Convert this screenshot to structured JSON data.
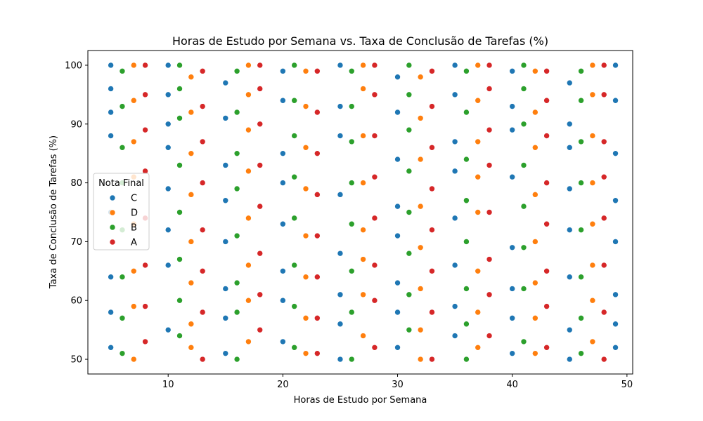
{
  "chart_data": {
    "type": "scatter",
    "title": "Horas de Estudo por Semana vs. Taxa de Conclusão de Tarefas (%)",
    "xlabel": "Horas de Estudo por Semana",
    "ylabel": "Taxa de Conclusão de Tarefas (%)",
    "xlim": [
      3.0,
      50.5
    ],
    "ylim": [
      47.5,
      102.5
    ],
    "xticks": [
      10,
      20,
      30,
      40,
      50
    ],
    "yticks": [
      50,
      60,
      70,
      80,
      90,
      100
    ],
    "grid": false,
    "legend": {
      "title": "Nota Final",
      "placement": "center-left"
    },
    "point_grid": {
      "x_values": "integers 5 to 49",
      "y_values": "integers 50 to 100"
    },
    "series": [
      {
        "name": "C",
        "color": "#1f77b4",
        "points": [
          [
            5,
            100
          ],
          [
            5,
            96
          ],
          [
            5,
            92
          ],
          [
            5,
            88
          ],
          [
            5,
            75
          ],
          [
            5,
            64
          ],
          [
            5,
            58
          ],
          [
            5,
            52
          ],
          [
            10,
            100
          ],
          [
            10,
            95
          ],
          [
            10,
            90
          ],
          [
            10,
            86
          ],
          [
            10,
            79
          ],
          [
            10,
            72
          ],
          [
            10,
            66
          ],
          [
            10,
            55
          ],
          [
            15,
            97
          ],
          [
            15,
            91
          ],
          [
            15,
            83
          ],
          [
            15,
            77
          ],
          [
            15,
            70
          ],
          [
            15,
            62
          ],
          [
            15,
            57
          ],
          [
            15,
            51
          ],
          [
            20,
            99
          ],
          [
            20,
            94
          ],
          [
            20,
            85
          ],
          [
            20,
            80
          ],
          [
            20,
            73
          ],
          [
            20,
            65
          ],
          [
            20,
            60
          ],
          [
            20,
            53
          ],
          [
            25,
            100
          ],
          [
            25,
            93
          ],
          [
            25,
            88
          ],
          [
            25,
            78
          ],
          [
            25,
            68
          ],
          [
            25,
            61
          ],
          [
            25,
            56
          ],
          [
            25,
            50
          ],
          [
            30,
            98
          ],
          [
            30,
            92
          ],
          [
            30,
            84
          ],
          [
            30,
            76
          ],
          [
            30,
            71
          ],
          [
            30,
            63
          ],
          [
            30,
            58
          ],
          [
            30,
            52
          ],
          [
            35,
            100
          ],
          [
            35,
            95
          ],
          [
            35,
            87
          ],
          [
            35,
            82
          ],
          [
            35,
            74
          ],
          [
            35,
            66
          ],
          [
            35,
            59
          ],
          [
            35,
            54
          ],
          [
            40,
            99
          ],
          [
            40,
            93
          ],
          [
            40,
            89
          ],
          [
            40,
            81
          ],
          [
            40,
            69
          ],
          [
            40,
            62
          ],
          [
            40,
            57
          ],
          [
            40,
            51
          ],
          [
            45,
            97
          ],
          [
            45,
            90
          ],
          [
            45,
            86
          ],
          [
            45,
            79
          ],
          [
            45,
            72
          ],
          [
            45,
            64
          ],
          [
            45,
            55
          ],
          [
            45,
            50
          ],
          [
            49,
            100
          ],
          [
            49,
            94
          ],
          [
            49,
            85
          ],
          [
            49,
            77
          ],
          [
            49,
            70
          ],
          [
            49,
            61
          ],
          [
            49,
            56
          ],
          [
            49,
            52
          ]
        ]
      },
      {
        "name": "D",
        "color": "#ff7f0e",
        "points": [
          [
            7,
            100
          ],
          [
            7,
            94
          ],
          [
            7,
            87
          ],
          [
            7,
            81
          ],
          [
            7,
            73
          ],
          [
            7,
            65
          ],
          [
            7,
            59
          ],
          [
            7,
            50
          ],
          [
            12,
            98
          ],
          [
            12,
            92
          ],
          [
            12,
            85
          ],
          [
            12,
            78
          ],
          [
            12,
            70
          ],
          [
            12,
            63
          ],
          [
            12,
            56
          ],
          [
            12,
            52
          ],
          [
            17,
            100
          ],
          [
            17,
            95
          ],
          [
            17,
            89
          ],
          [
            17,
            82
          ],
          [
            17,
            74
          ],
          [
            17,
            66
          ],
          [
            17,
            60
          ],
          [
            17,
            53
          ],
          [
            22,
            99
          ],
          [
            22,
            93
          ],
          [
            22,
            86
          ],
          [
            22,
            79
          ],
          [
            22,
            71
          ],
          [
            22,
            64
          ],
          [
            22,
            57
          ],
          [
            22,
            51
          ],
          [
            27,
            100
          ],
          [
            27,
            96
          ],
          [
            27,
            88
          ],
          [
            27,
            80
          ],
          [
            27,
            72
          ],
          [
            27,
            67
          ],
          [
            27,
            61
          ],
          [
            27,
            54
          ],
          [
            32,
            98
          ],
          [
            32,
            91
          ],
          [
            32,
            84
          ],
          [
            32,
            76
          ],
          [
            32,
            69
          ],
          [
            32,
            62
          ],
          [
            32,
            55
          ],
          [
            32,
            50
          ],
          [
            37,
            100
          ],
          [
            37,
            94
          ],
          [
            37,
            87
          ],
          [
            37,
            81
          ],
          [
            37,
            75
          ],
          [
            37,
            65
          ],
          [
            37,
            58
          ],
          [
            37,
            52
          ],
          [
            42,
            99
          ],
          [
            42,
            92
          ],
          [
            42,
            86
          ],
          [
            42,
            78
          ],
          [
            42,
            70
          ],
          [
            42,
            63
          ],
          [
            42,
            57
          ],
          [
            42,
            51
          ],
          [
            47,
            100
          ],
          [
            47,
            95
          ],
          [
            47,
            88
          ],
          [
            47,
            80
          ],
          [
            47,
            73
          ],
          [
            47,
            66
          ],
          [
            47,
            60
          ],
          [
            47,
            53
          ]
        ]
      },
      {
        "name": "B",
        "color": "#2ca02c",
        "points": [
          [
            6,
            99
          ],
          [
            6,
            93
          ],
          [
            6,
            86
          ],
          [
            6,
            80
          ],
          [
            6,
            72
          ],
          [
            6,
            64
          ],
          [
            6,
            57
          ],
          [
            6,
            51
          ],
          [
            11,
            100
          ],
          [
            11,
            96
          ],
          [
            11,
            91
          ],
          [
            11,
            83
          ],
          [
            11,
            75
          ],
          [
            11,
            67
          ],
          [
            11,
            60
          ],
          [
            11,
            54
          ],
          [
            16,
            99
          ],
          [
            16,
            92
          ],
          [
            16,
            85
          ],
          [
            16,
            79
          ],
          [
            16,
            71
          ],
          [
            16,
            63
          ],
          [
            16,
            58
          ],
          [
            16,
            50
          ],
          [
            21,
            100
          ],
          [
            21,
            94
          ],
          [
            21,
            88
          ],
          [
            21,
            81
          ],
          [
            21,
            74
          ],
          [
            21,
            66
          ],
          [
            21,
            59
          ],
          [
            21,
            52
          ],
          [
            26,
            99
          ],
          [
            26,
            93
          ],
          [
            26,
            87
          ],
          [
            26,
            80
          ],
          [
            26,
            73
          ],
          [
            26,
            65
          ],
          [
            26,
            58
          ],
          [
            26,
            50
          ],
          [
            31,
            100
          ],
          [
            31,
            95
          ],
          [
            31,
            89
          ],
          [
            31,
            82
          ],
          [
            31,
            75
          ],
          [
            31,
            68
          ],
          [
            31,
            61
          ],
          [
            31,
            55
          ],
          [
            36,
            99
          ],
          [
            36,
            92
          ],
          [
            36,
            84
          ],
          [
            36,
            77
          ],
          [
            36,
            70
          ],
          [
            36,
            62
          ],
          [
            36,
            56
          ],
          [
            36,
            50
          ],
          [
            41,
            100
          ],
          [
            41,
            96
          ],
          [
            41,
            90
          ],
          [
            41,
            83
          ],
          [
            41,
            76
          ],
          [
            41,
            69
          ],
          [
            41,
            62
          ],
          [
            41,
            53
          ],
          [
            46,
            99
          ],
          [
            46,
            94
          ],
          [
            46,
            87
          ],
          [
            46,
            80
          ],
          [
            46,
            72
          ],
          [
            46,
            64
          ],
          [
            46,
            57
          ],
          [
            46,
            51
          ]
        ]
      },
      {
        "name": "A",
        "color": "#d62728",
        "points": [
          [
            8,
            100
          ],
          [
            8,
            95
          ],
          [
            8,
            89
          ],
          [
            8,
            82
          ],
          [
            8,
            74
          ],
          [
            8,
            66
          ],
          [
            8,
            59
          ],
          [
            8,
            53
          ],
          [
            13,
            99
          ],
          [
            13,
            93
          ],
          [
            13,
            87
          ],
          [
            13,
            80
          ],
          [
            13,
            72
          ],
          [
            13,
            65
          ],
          [
            13,
            58
          ],
          [
            13,
            50
          ],
          [
            18,
            100
          ],
          [
            18,
            96
          ],
          [
            18,
            90
          ],
          [
            18,
            83
          ],
          [
            18,
            76
          ],
          [
            18,
            68
          ],
          [
            18,
            61
          ],
          [
            18,
            55
          ],
          [
            23,
            99
          ],
          [
            23,
            92
          ],
          [
            23,
            85
          ],
          [
            23,
            78
          ],
          [
            23,
            71
          ],
          [
            23,
            64
          ],
          [
            23,
            57
          ],
          [
            23,
            51
          ],
          [
            28,
            100
          ],
          [
            28,
            95
          ],
          [
            28,
            88
          ],
          [
            28,
            81
          ],
          [
            28,
            74
          ],
          [
            28,
            66
          ],
          [
            28,
            60
          ],
          [
            28,
            52
          ],
          [
            33,
            99
          ],
          [
            33,
            93
          ],
          [
            33,
            86
          ],
          [
            33,
            79
          ],
          [
            33,
            72
          ],
          [
            33,
            65
          ],
          [
            33,
            58
          ],
          [
            33,
            50
          ],
          [
            38,
            100
          ],
          [
            38,
            96
          ],
          [
            38,
            89
          ],
          [
            38,
            83
          ],
          [
            38,
            75
          ],
          [
            38,
            67
          ],
          [
            38,
            61
          ],
          [
            38,
            54
          ],
          [
            43,
            99
          ],
          [
            43,
            94
          ],
          [
            43,
            88
          ],
          [
            43,
            80
          ],
          [
            43,
            73
          ],
          [
            43,
            65
          ],
          [
            43,
            59
          ],
          [
            43,
            52
          ],
          [
            48,
            100
          ],
          [
            48,
            95
          ],
          [
            48,
            87
          ],
          [
            48,
            81
          ],
          [
            48,
            74
          ],
          [
            48,
            66
          ],
          [
            48,
            58
          ],
          [
            48,
            50
          ]
        ]
      }
    ]
  }
}
